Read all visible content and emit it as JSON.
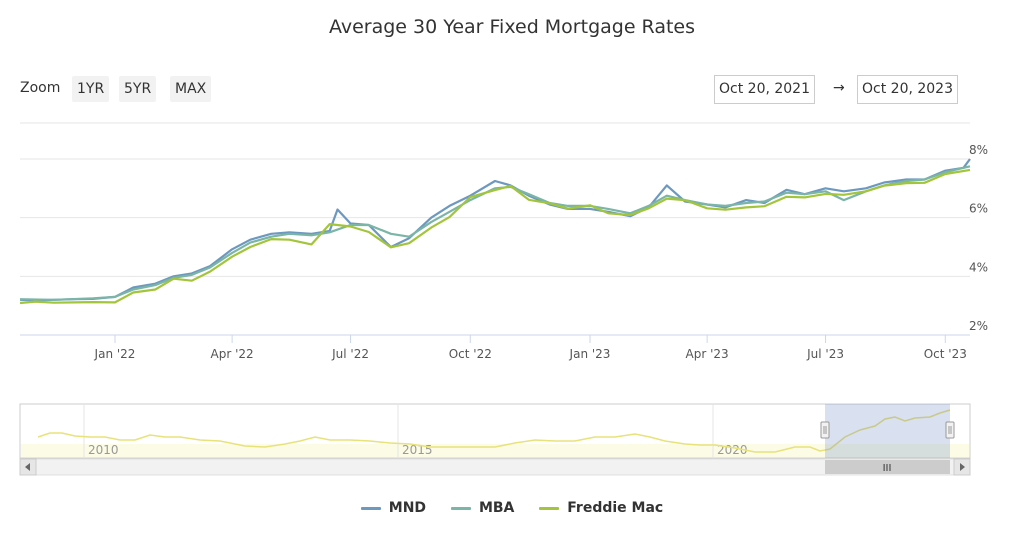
{
  "title": "Average 30 Year Fixed Mortgage Rates",
  "zoom": {
    "label": "Zoom",
    "buttons": [
      "1YR",
      "5YR",
      "MAX"
    ]
  },
  "range": {
    "from": "Oct 20, 2021",
    "to": "Oct 20, 2023",
    "arrow": "→"
  },
  "navigator": {
    "ticks": [
      "2010",
      "2015",
      "2020"
    ],
    "scrollbar_grip": "III"
  },
  "colors": {
    "MND": "#6d98bf",
    "MBA": "#7bb5a6",
    "Freddie Mac": "#a3c53b",
    "navigator": "#e8e27a"
  },
  "chart_data": {
    "type": "line",
    "title": "Average 30 Year Fixed Mortgage Rates",
    "xlabel": "",
    "ylabel": "",
    "x_range": [
      "2021-10-20",
      "2023-10-20"
    ],
    "ylim": [
      2,
      8
    ],
    "y_ticks": [
      "2%",
      "4%",
      "6%",
      "8%"
    ],
    "x_ticks": [
      {
        "label": "Jan '22",
        "date": "2022-01-01"
      },
      {
        "label": "Apr '22",
        "date": "2022-04-01"
      },
      {
        "label": "Jul '22",
        "date": "2022-07-01"
      },
      {
        "label": "Oct '22",
        "date": "2022-10-01"
      },
      {
        "label": "Jan '23",
        "date": "2023-01-01"
      },
      {
        "label": "Apr '23",
        "date": "2023-04-01"
      },
      {
        "label": "Jul '23",
        "date": "2023-07-01"
      },
      {
        "label": "Oct '23",
        "date": "2023-10-01"
      }
    ],
    "legend_position": "bottom-center",
    "series": [
      {
        "name": "MND",
        "points": [
          [
            "2021-10-20",
            3.2
          ],
          [
            "2021-11-01",
            3.18
          ],
          [
            "2021-11-15",
            3.2
          ],
          [
            "2021-12-01",
            3.22
          ],
          [
            "2021-12-15",
            3.23
          ],
          [
            "2022-01-01",
            3.3
          ],
          [
            "2022-01-15",
            3.62
          ],
          [
            "2022-02-01",
            3.75
          ],
          [
            "2022-02-15",
            4.0
          ],
          [
            "2022-03-01",
            4.1
          ],
          [
            "2022-03-15",
            4.35
          ],
          [
            "2022-04-01",
            4.92
          ],
          [
            "2022-04-15",
            5.25
          ],
          [
            "2022-05-01",
            5.45
          ],
          [
            "2022-05-15",
            5.5
          ],
          [
            "2022-06-01",
            5.45
          ],
          [
            "2022-06-15",
            5.55
          ],
          [
            "2022-06-21",
            6.28
          ],
          [
            "2022-07-01",
            5.8
          ],
          [
            "2022-07-15",
            5.75
          ],
          [
            "2022-08-01",
            5.0
          ],
          [
            "2022-08-15",
            5.3
          ],
          [
            "2022-09-01",
            6.0
          ],
          [
            "2022-09-15",
            6.4
          ],
          [
            "2022-10-01",
            6.75
          ],
          [
            "2022-10-20",
            7.25
          ],
          [
            "2022-11-01",
            7.1
          ],
          [
            "2022-11-15",
            6.75
          ],
          [
            "2022-12-01",
            6.45
          ],
          [
            "2022-12-15",
            6.3
          ],
          [
            "2023-01-01",
            6.3
          ],
          [
            "2023-01-15",
            6.2
          ],
          [
            "2023-02-01",
            6.05
          ],
          [
            "2023-02-15",
            6.35
          ],
          [
            "2023-03-01",
            7.1
          ],
          [
            "2023-03-15",
            6.55
          ],
          [
            "2023-04-01",
            6.45
          ],
          [
            "2023-04-15",
            6.35
          ],
          [
            "2023-05-01",
            6.6
          ],
          [
            "2023-05-15",
            6.5
          ],
          [
            "2023-06-01",
            6.95
          ],
          [
            "2023-06-15",
            6.8
          ],
          [
            "2023-07-01",
            7.0
          ],
          [
            "2023-07-15",
            6.9
          ],
          [
            "2023-08-01",
            7.0
          ],
          [
            "2023-08-15",
            7.2
          ],
          [
            "2023-09-01",
            7.3
          ],
          [
            "2023-09-15",
            7.3
          ],
          [
            "2023-10-01",
            7.6
          ],
          [
            "2023-10-15",
            7.7
          ],
          [
            "2023-10-20",
            8.0
          ]
        ]
      },
      {
        "name": "MBA",
        "points": [
          [
            "2021-10-20",
            3.22
          ],
          [
            "2021-11-15",
            3.2
          ],
          [
            "2021-12-15",
            3.25
          ],
          [
            "2022-01-01",
            3.3
          ],
          [
            "2022-01-15",
            3.55
          ],
          [
            "2022-02-01",
            3.7
          ],
          [
            "2022-02-15",
            3.95
          ],
          [
            "2022-03-01",
            4.05
          ],
          [
            "2022-03-15",
            4.3
          ],
          [
            "2022-04-01",
            4.8
          ],
          [
            "2022-04-15",
            5.15
          ],
          [
            "2022-05-01",
            5.35
          ],
          [
            "2022-05-15",
            5.45
          ],
          [
            "2022-06-01",
            5.4
          ],
          [
            "2022-06-15",
            5.5
          ],
          [
            "2022-07-01",
            5.75
          ],
          [
            "2022-07-15",
            5.75
          ],
          [
            "2022-08-01",
            5.45
          ],
          [
            "2022-08-15",
            5.35
          ],
          [
            "2022-09-01",
            5.85
          ],
          [
            "2022-09-15",
            6.2
          ],
          [
            "2022-10-01",
            6.6
          ],
          [
            "2022-10-20",
            7.0
          ],
          [
            "2022-11-01",
            7.05
          ],
          [
            "2022-11-15",
            6.8
          ],
          [
            "2022-12-01",
            6.5
          ],
          [
            "2022-12-15",
            6.4
          ],
          [
            "2023-01-01",
            6.4
          ],
          [
            "2023-01-15",
            6.3
          ],
          [
            "2023-02-01",
            6.15
          ],
          [
            "2023-02-15",
            6.4
          ],
          [
            "2023-03-01",
            6.75
          ],
          [
            "2023-03-15",
            6.6
          ],
          [
            "2023-04-01",
            6.45
          ],
          [
            "2023-04-15",
            6.4
          ],
          [
            "2023-05-01",
            6.5
          ],
          [
            "2023-05-15",
            6.55
          ],
          [
            "2023-06-01",
            6.85
          ],
          [
            "2023-06-15",
            6.8
          ],
          [
            "2023-07-01",
            6.9
          ],
          [
            "2023-07-15",
            6.6
          ],
          [
            "2023-08-01",
            6.9
          ],
          [
            "2023-08-15",
            7.1
          ],
          [
            "2023-09-01",
            7.25
          ],
          [
            "2023-09-15",
            7.3
          ],
          [
            "2023-10-01",
            7.55
          ],
          [
            "2023-10-20",
            7.75
          ]
        ]
      },
      {
        "name": "Freddie Mac",
        "points": [
          [
            "2021-10-20",
            3.09
          ],
          [
            "2021-11-01",
            3.14
          ],
          [
            "2021-11-15",
            3.1
          ],
          [
            "2021-12-01",
            3.11
          ],
          [
            "2021-12-15",
            3.12
          ],
          [
            "2022-01-01",
            3.11
          ],
          [
            "2022-01-15",
            3.45
          ],
          [
            "2022-02-01",
            3.55
          ],
          [
            "2022-02-15",
            3.92
          ],
          [
            "2022-03-01",
            3.85
          ],
          [
            "2022-03-15",
            4.16
          ],
          [
            "2022-04-01",
            4.67
          ],
          [
            "2022-04-15",
            5.0
          ],
          [
            "2022-05-01",
            5.27
          ],
          [
            "2022-05-15",
            5.25
          ],
          [
            "2022-06-01",
            5.09
          ],
          [
            "2022-06-15",
            5.78
          ],
          [
            "2022-07-01",
            5.7
          ],
          [
            "2022-07-15",
            5.51
          ],
          [
            "2022-08-01",
            4.99
          ],
          [
            "2022-08-15",
            5.13
          ],
          [
            "2022-09-01",
            5.66
          ],
          [
            "2022-09-15",
            6.02
          ],
          [
            "2022-10-01",
            6.7
          ],
          [
            "2022-10-20",
            6.94
          ],
          [
            "2022-11-01",
            7.08
          ],
          [
            "2022-11-15",
            6.61
          ],
          [
            "2022-12-01",
            6.49
          ],
          [
            "2022-12-15",
            6.31
          ],
          [
            "2023-01-01",
            6.42
          ],
          [
            "2023-01-15",
            6.15
          ],
          [
            "2023-02-01",
            6.09
          ],
          [
            "2023-02-15",
            6.32
          ],
          [
            "2023-03-01",
            6.65
          ],
          [
            "2023-03-15",
            6.6
          ],
          [
            "2023-04-01",
            6.32
          ],
          [
            "2023-04-15",
            6.27
          ],
          [
            "2023-05-01",
            6.35
          ],
          [
            "2023-05-15",
            6.39
          ],
          [
            "2023-06-01",
            6.71
          ],
          [
            "2023-06-15",
            6.69
          ],
          [
            "2023-07-01",
            6.81
          ],
          [
            "2023-07-15",
            6.78
          ],
          [
            "2023-08-01",
            6.9
          ],
          [
            "2023-08-15",
            7.09
          ],
          [
            "2023-09-01",
            7.18
          ],
          [
            "2023-09-15",
            7.19
          ],
          [
            "2023-10-01",
            7.49
          ],
          [
            "2023-10-20",
            7.63
          ]
        ]
      }
    ]
  }
}
